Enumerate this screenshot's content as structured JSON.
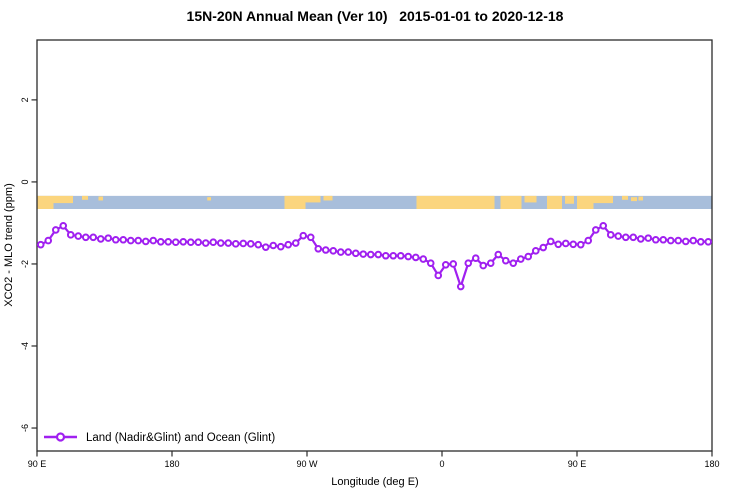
{
  "title": "15N-20N Annual Mean (Ver 10)   2015-01-01 to 2020-12-18",
  "chart_data": {
    "type": "line",
    "title": "15N-20N Annual Mean (Ver 10)   2015-01-01 to 2020-12-18",
    "xlabel": "Longitude (deg E)",
    "ylabel": "XCO2 - MLO trend (ppm)",
    "grid": false,
    "xlim": [
      90,
      540
    ],
    "ylim": [
      -6.56,
      3.46
    ],
    "x_ticks": [
      {
        "lon": 90,
        "label": "90 E"
      },
      {
        "lon": 180,
        "label": "180"
      },
      {
        "lon": 270,
        "label": "90 W"
      },
      {
        "lon": 360,
        "label": "0"
      },
      {
        "lon": 450,
        "label": "90 E"
      },
      {
        "lon": 540,
        "label": "180"
      }
    ],
    "y_ticks": [
      {
        "v": 2,
        "label": "2"
      },
      {
        "v": 0,
        "label": "0"
      },
      {
        "v": -2,
        "label": "-2"
      },
      {
        "v": -4,
        "label": "-4"
      },
      {
        "v": -6,
        "label": "-6"
      }
    ],
    "legend_position": "bottom-left-inside",
    "series": [
      {
        "name": "Land (Nadir&Glint) and Ocean (Glint)",
        "color": "#A020F0",
        "marker": "open-circle",
        "x": [
          92.5,
          97.5,
          102.5,
          107.5,
          112.5,
          117.5,
          122.5,
          127.5,
          132.5,
          137.5,
          142.5,
          147.5,
          152.5,
          157.5,
          162.5,
          167.5,
          172.5,
          177.5,
          182.5,
          187.5,
          192.5,
          197.5,
          202.5,
          207.5,
          212.5,
          217.5,
          222.5,
          227.5,
          232.5,
          237.5,
          242.5,
          247.5,
          252.5,
          257.5,
          262.5,
          267.5,
          272.5,
          277.5,
          282.5,
          287.5,
          292.5,
          297.5,
          302.5,
          307.5,
          312.5,
          317.5,
          322.5,
          327.5,
          332.5,
          337.5,
          342.5,
          347.5,
          352.5,
          357.5,
          362.5,
          367.5,
          372.5,
          377.5,
          382.5,
          387.5,
          392.5,
          397.5,
          402.5,
          407.5,
          412.5,
          417.5,
          422.5,
          427.5,
          432.5,
          437.5,
          442.5,
          447.5,
          452.5,
          457.5,
          462.5,
          467.5,
          472.5,
          477.5,
          482.5,
          487.5,
          492.5,
          497.5,
          502.5,
          507.5,
          512.5,
          517.5,
          522.5,
          527.5,
          532.5,
          537.5
        ],
        "y": [
          -1.53,
          -1.43,
          -1.17,
          -1.07,
          -1.29,
          -1.32,
          -1.35,
          -1.35,
          -1.39,
          -1.37,
          -1.41,
          -1.41,
          -1.43,
          -1.43,
          -1.45,
          -1.43,
          -1.46,
          -1.46,
          -1.47,
          -1.46,
          -1.47,
          -1.47,
          -1.49,
          -1.47,
          -1.49,
          -1.49,
          -1.51,
          -1.5,
          -1.51,
          -1.53,
          -1.59,
          -1.55,
          -1.58,
          -1.53,
          -1.49,
          -1.31,
          -1.35,
          -1.63,
          -1.66,
          -1.68,
          -1.71,
          -1.71,
          -1.74,
          -1.76,
          -1.77,
          -1.77,
          -1.8,
          -1.8,
          -1.8,
          -1.82,
          -1.84,
          -1.88,
          -1.98,
          -2.28,
          -2.02,
          -2.0,
          -2.55,
          -1.98,
          -1.86,
          -2.04,
          -1.98,
          -1.77,
          -1.92,
          -1.98,
          -1.88,
          -1.82,
          -1.68,
          -1.6,
          -1.45,
          -1.52,
          -1.5,
          -1.52,
          -1.53,
          -1.43,
          -1.17,
          -1.07,
          -1.29,
          -1.32,
          -1.35,
          -1.35,
          -1.39,
          -1.37,
          -1.41,
          -1.41,
          -1.43,
          -1.43,
          -1.45,
          -1.43,
          -1.46,
          -1.46
        ]
      }
    ],
    "map_strip": {
      "ocean_color": "#A8BEDB",
      "land_color": "#FBD57E",
      "y_top": -0.34,
      "y_bottom": -0.66,
      "land_segments": [
        {
          "from": 90,
          "to": 101,
          "top": 0,
          "height": 1
        },
        {
          "from": 101,
          "to": 114,
          "top": 0,
          "height": 0.55
        },
        {
          "from": 120,
          "to": 124,
          "top": 0,
          "height": 0.3
        },
        {
          "from": 131,
          "to": 134,
          "top": 0.05,
          "height": 0.3
        },
        {
          "from": 203.5,
          "to": 206,
          "top": 0.1,
          "height": 0.25
        },
        {
          "from": 255,
          "to": 269,
          "top": 0,
          "height": 1
        },
        {
          "from": 269,
          "to": 279,
          "top": 0,
          "height": 0.5
        },
        {
          "from": 281,
          "to": 287,
          "top": 0,
          "height": 0.35
        },
        {
          "from": 343,
          "to": 395,
          "top": 0,
          "height": 1
        },
        {
          "from": 399,
          "to": 413,
          "top": 0,
          "height": 1
        },
        {
          "from": 415,
          "to": 423,
          "top": 0,
          "height": 0.5
        },
        {
          "from": 430,
          "to": 440,
          "top": 0,
          "height": 1
        },
        {
          "from": 442,
          "to": 448,
          "top": 0,
          "height": 0.6
        },
        {
          "from": 450,
          "to": 461,
          "top": 0,
          "height": 1
        },
        {
          "from": 461,
          "to": 474,
          "top": 0,
          "height": 0.55
        },
        {
          "from": 480,
          "to": 484,
          "top": 0,
          "height": 0.3
        },
        {
          "from": 486,
          "to": 490,
          "top": 0.1,
          "height": 0.3
        },
        {
          "from": 491,
          "to": 494,
          "top": 0.05,
          "height": 0.3
        }
      ]
    }
  }
}
